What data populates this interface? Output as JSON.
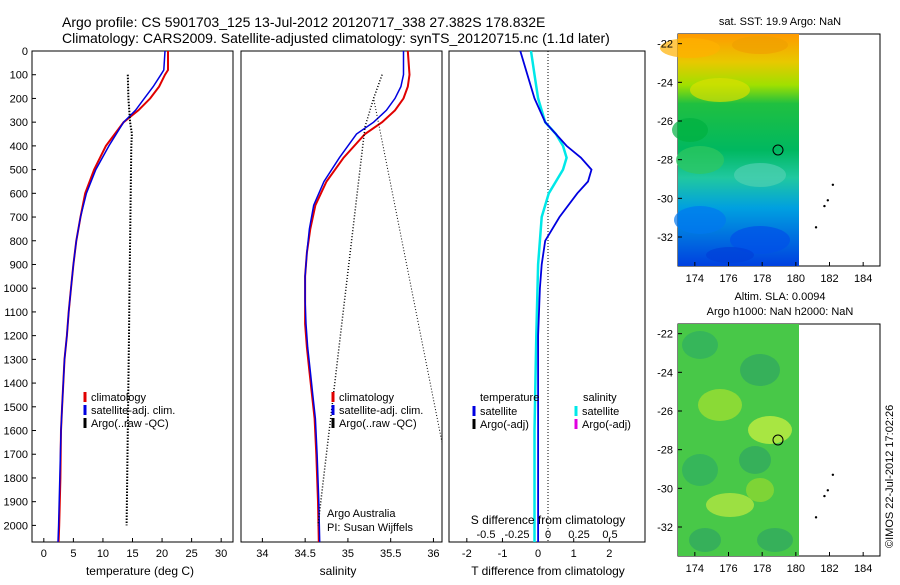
{
  "header": {
    "line1": "Argo profile: CS 5901703_125 13-Jul-2012 20120717_338 27.382S 178.832E",
    "line2": "Climatology: CARS2009. Satellite-adjusted climatology: synTS_20120715.nc (1.1d later)"
  },
  "colors": {
    "climatology": "#e00000",
    "satellite": "#0000e0",
    "argo": "#000000",
    "satellite_salinity": "#00e8e8",
    "argo_adj_salinity": "#e000e0"
  },
  "chart_data": [
    {
      "type": "line",
      "xlabel": "temperature (deg C)",
      "ylabel": "",
      "xlim": [
        -2,
        32
      ],
      "ylim": [
        2070,
        0
      ],
      "xticks": [
        "0",
        "5",
        "10",
        "15",
        "20",
        "25",
        "30"
      ],
      "yticks": [
        "0",
        "100",
        "200",
        "300",
        "400",
        "500",
        "600",
        "700",
        "800",
        "900",
        "1000",
        "1100",
        "1200",
        "1300",
        "1400",
        "1500",
        "1600",
        "1700",
        "1800",
        "1900",
        "2000"
      ],
      "legend": [
        "climatology",
        "satellite-adj. clim.",
        "Argo(..raw -QC)"
      ],
      "series": [
        {
          "name": "climatology",
          "x": [
            21,
            21,
            20.5,
            19.5,
            18,
            16,
            13.5,
            10.5,
            8.5,
            7,
            6.2,
            5.5,
            5,
            4.6,
            4.2,
            3.9,
            3.5,
            3.3,
            3.1,
            2.9,
            2.8,
            2.6,
            2.5
          ],
          "y": [
            0,
            80,
            100,
            150,
            200,
            250,
            300,
            400,
            500,
            600,
            700,
            800,
            900,
            1000,
            1100,
            1200,
            1300,
            1400,
            1500,
            1600,
            1800,
            2000,
            2070
          ]
        },
        {
          "name": "satellite-adj. clim.",
          "x": [
            20.5,
            20.3,
            19.8,
            18.5,
            17,
            15.5,
            13.5,
            11,
            8.8,
            7.2,
            6.2,
            5.5,
            5,
            4.6,
            4.2,
            3.9,
            3.5,
            3.3,
            3.1,
            2.9,
            2.7,
            2.5,
            2.4
          ],
          "y": [
            0,
            80,
            100,
            150,
            200,
            250,
            300,
            400,
            500,
            600,
            700,
            800,
            900,
            1000,
            1100,
            1200,
            1300,
            1400,
            1500,
            1600,
            1800,
            2000,
            2070
          ]
        },
        {
          "name": "Argo(..raw -QC)",
          "x": [
            14.2,
            14.3,
            14.6,
            14.9,
            14.8,
            14.7,
            14.6,
            14.5,
            14.4,
            14.3,
            14.2,
            14.1,
            14
          ],
          "y": [
            100,
            200,
            300,
            350,
            400,
            600,
            800,
            1000,
            1200,
            1400,
            1600,
            1800,
            2000
          ]
        }
      ]
    },
    {
      "type": "line",
      "xlabel": "salinity",
      "xlim": [
        33.75,
        36.1
      ],
      "ylim": [
        2070,
        0
      ],
      "xticks": [
        "34",
        "34.5",
        "35",
        "35.5",
        "36"
      ],
      "legend": [
        "climatology",
        "satellite-adj. clim.",
        "Argo(..raw -QC)"
      ],
      "annotation": [
        "Argo Australia",
        "PI: Susan Wijffels"
      ],
      "series": [
        {
          "name": "climatology",
          "x": [
            35.7,
            35.72,
            35.7,
            35.65,
            35.55,
            35.4,
            35.2,
            34.95,
            34.75,
            34.62,
            34.56,
            34.52,
            34.5,
            34.5,
            34.5,
            34.52,
            34.55,
            34.58,
            34.61,
            34.63,
            34.65,
            34.66
          ],
          "y": [
            0,
            100,
            150,
            200,
            250,
            300,
            350,
            450,
            550,
            650,
            750,
            850,
            950,
            1050,
            1150,
            1250,
            1350,
            1450,
            1550,
            1700,
            1900,
            2070
          ]
        },
        {
          "name": "satellite-adj. clim.",
          "x": [
            35.65,
            35.65,
            35.62,
            35.55,
            35.45,
            35.3,
            35.1,
            34.9,
            34.72,
            34.6,
            34.55,
            34.52,
            34.5,
            34.5,
            34.51,
            34.53,
            34.56,
            34.59,
            34.62,
            34.64,
            34.66,
            34.67
          ],
          "y": [
            0,
            100,
            150,
            200,
            250,
            300,
            350,
            450,
            550,
            650,
            750,
            850,
            950,
            1050,
            1150,
            1250,
            1350,
            1450,
            1550,
            1700,
            1900,
            2070
          ]
        },
        {
          "name": "Argo(..raw -QC)",
          "x": [
            35.4,
            35.3,
            35.2,
            34.65
          ],
          "y": [
            100,
            200,
            320,
            2000
          ]
        },
        {
          "name": "Argo(..raw -QC)",
          "x": [
            35.4,
            35.3,
            36.1
          ],
          "y": [
            100,
            200,
            1650
          ]
        }
      ]
    },
    {
      "type": "line",
      "xlabel": "T difference from climatology",
      "xlabel_top": "S difference from climatology",
      "xlim": [
        -2.5,
        3
      ],
      "ylim": [
        2070,
        0
      ],
      "xticks": [
        "-2",
        "-1",
        "0",
        "1",
        "2"
      ],
      "xticks_top": [
        "-0.5",
        "-0.25",
        "0",
        "0.25",
        "0.5"
      ],
      "legend_left": [
        "temperature",
        "satellite",
        "Argo(-adj)"
      ],
      "legend_right": [
        "salinity",
        "satellite",
        "Argo(-adj)"
      ],
      "series": [
        {
          "name": "satellite",
          "x": [
            -0.5,
            -0.3,
            -0.1,
            0.2,
            0.5,
            0.8,
            1.2,
            1.5,
            1.4,
            1.1,
            0.6,
            0.2,
            0.1,
            0.05,
            0,
            0
          ],
          "y": [
            0,
            100,
            200,
            300,
            350,
            400,
            450,
            500,
            550,
            600,
            700,
            800,
            900,
            1000,
            1200,
            2070
          ]
        },
        {
          "name": "satellite",
          "x": [
            -0.2,
            -0.1,
            0,
            0.2,
            0.5,
            0.7,
            0.8,
            0.7,
            0.5,
            0.3,
            0.1,
            0,
            -0.05,
            -0.1,
            -0.1
          ],
          "y": [
            0,
            100,
            200,
            300,
            350,
            400,
            450,
            500,
            550,
            600,
            700,
            900,
            1200,
            1600,
            2070
          ]
        }
      ]
    },
    {
      "type": "heatmap",
      "title": "sat. SST: 19.9 Argo: NaN",
      "xlim": [
        173,
        185
      ],
      "ylim": [
        -33.5,
        -21.5
      ],
      "xticks": [
        "174",
        "176",
        "178",
        "180",
        "182",
        "184"
      ],
      "yticks": [
        "-22",
        "-24",
        "-26",
        "-28",
        "-30",
        "-32"
      ],
      "marker": {
        "x": 178.832,
        "y": -27.382
      }
    },
    {
      "type": "heatmap",
      "title": "Altim. SLA: 0.0094",
      "subtitle": "Argo h1000: NaN h2000: NaN",
      "xlim": [
        173,
        185
      ],
      "ylim": [
        -33.5,
        -21.5
      ],
      "xticks": [
        "174",
        "176",
        "178",
        "180",
        "182",
        "184"
      ],
      "yticks": [
        "-22",
        "-24",
        "-26",
        "-28",
        "-30",
        "-32"
      ],
      "marker": {
        "x": 178.832,
        "y": -27.382
      }
    }
  ],
  "footer": {
    "credit": "©IMOS 22-Jul-2012 17:02:26"
  }
}
